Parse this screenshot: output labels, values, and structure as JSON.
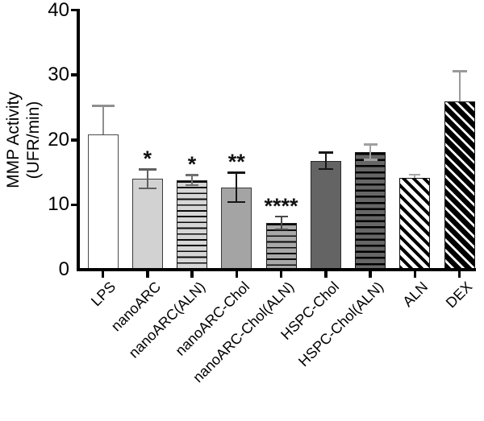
{
  "figure": {
    "background": "#ffffff",
    "y_axis_title_line1": "MMP Activity",
    "y_axis_title_line2": "(UFR/min)"
  },
  "chart_data": {
    "type": "bar",
    "title": "",
    "xlabel": "",
    "ylabel": "MMP Activity (UFR/min)",
    "ylim": [
      0,
      40
    ],
    "yticks": [
      0,
      10,
      20,
      30,
      40
    ],
    "grid": false,
    "legend": "none",
    "categories": [
      "LPS",
      "nanoARC",
      "nanoARC(ALN)",
      "nanoARC-Chol",
      "nanoARC-Chol(ALN)",
      "HSPC-Chol",
      "HSPC-Chol(ALN)",
      "ALN",
      "DEX"
    ],
    "values": [
      20.8,
      14.0,
      13.8,
      12.7,
      7.2,
      16.8,
      18.1,
      14.2,
      25.9
    ],
    "errors": [
      4.5,
      1.5,
      0.8,
      2.3,
      1.0,
      1.3,
      1.2,
      0.5,
      4.7
    ],
    "significance": [
      "",
      "*",
      "*",
      "**",
      "****",
      "",
      "",
      "",
      ""
    ],
    "bar_styles": [
      {
        "pattern": "solid",
        "fill": "#ffffff",
        "line": "#000000",
        "border": "#4a4a4a",
        "err_color": "#8f8f8f",
        "cap_w": 28,
        "lower_whisker": false,
        "line_w": 0,
        "period": 0
      },
      {
        "pattern": "solid",
        "fill": "#d2d2d2",
        "line": "#000000",
        "border": "#3a3a3a",
        "err_color": "#5f5f5f",
        "cap_w": 22,
        "lower_whisker": true,
        "line_w": 0,
        "period": 0
      },
      {
        "pattern": "hlines",
        "fill": "#d6d6d6",
        "line": "#0a0a0a",
        "border": "#1a1a1a",
        "err_color": "#6f6f6f",
        "cap_w": 16,
        "lower_whisker": true,
        "line_w": 1.8,
        "period": 7.2
      },
      {
        "pattern": "solid",
        "fill": "#a4a4a4",
        "line": "#000000",
        "border": "#3a3a3a",
        "err_color": "#161616",
        "cap_w": 22,
        "lower_whisker": true,
        "line_w": 0,
        "period": 0
      },
      {
        "pattern": "hlines",
        "fill": "#a8a8a8",
        "line": "#0a0a0a",
        "border": "#1a1a1a",
        "err_color": "#4a4a4a",
        "cap_w": 16,
        "lower_whisker": true,
        "line_w": 1.8,
        "period": 7.2
      },
      {
        "pattern": "solid",
        "fill": "#646464",
        "line": "#000000",
        "border": "#2a2a2a",
        "err_color": "#161616",
        "cap_w": 18,
        "lower_whisker": true,
        "line_w": 0,
        "period": 0
      },
      {
        "pattern": "hlines",
        "fill": "#666666",
        "line": "#000000",
        "border": "#111111",
        "err_color": "#a0a0a0",
        "cap_w": 17,
        "lower_whisker": true,
        "line_w": 2.5,
        "period": 7.6
      },
      {
        "pattern": "diag",
        "fill": "#ffffff",
        "line": "#000000",
        "border": "#111111",
        "err_color": "#a8a8a8",
        "cap_w": 14,
        "lower_whisker": false,
        "line_w": 4,
        "period": 9
      },
      {
        "pattern": "diag",
        "fill": "#ffffff",
        "line": "#000000",
        "border": "#111111",
        "err_color": "#9a9a9a",
        "cap_w": 18,
        "lower_whisker": false,
        "line_w": 6.5,
        "period": 9.3
      }
    ]
  }
}
